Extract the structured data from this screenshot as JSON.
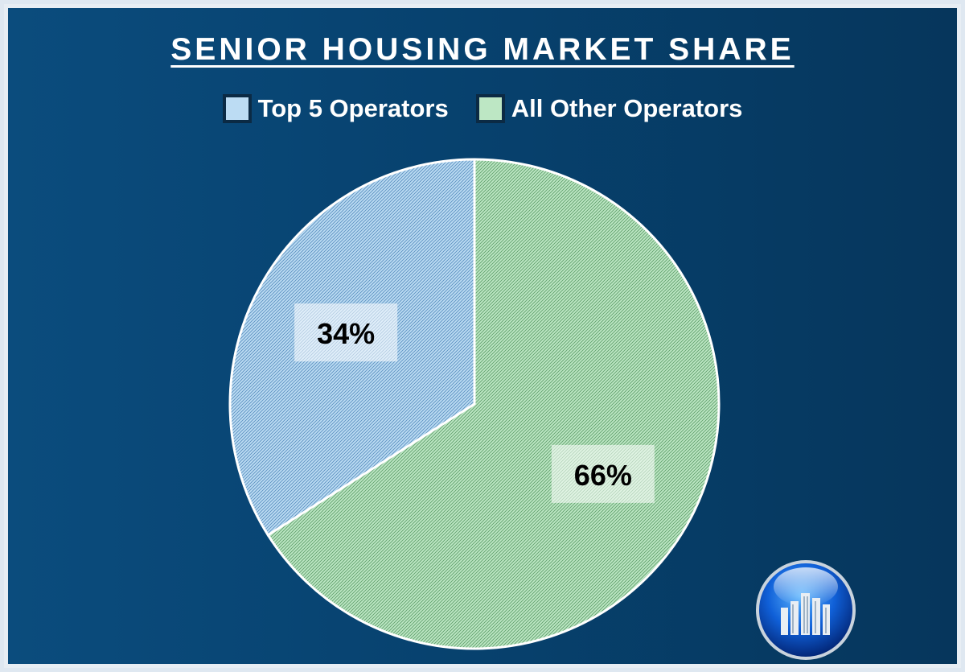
{
  "chart_data": {
    "type": "pie",
    "title": "SENIOR HOUSING MARKET SHARE",
    "legend_position": "top",
    "slices": [
      {
        "label": "Top 5 Operators",
        "value": 34,
        "data_label": "34%",
        "color": "#bcdcf3"
      },
      {
        "label": "All Other Operators",
        "value": 66,
        "data_label": "66%",
        "color": "#bde7c4"
      }
    ]
  },
  "colors": {
    "background": "#07426f",
    "slice_border": "#ffffff",
    "legend_border": "#0b2a44"
  },
  "logo": {
    "icon": "building-globe-logo-icon"
  }
}
